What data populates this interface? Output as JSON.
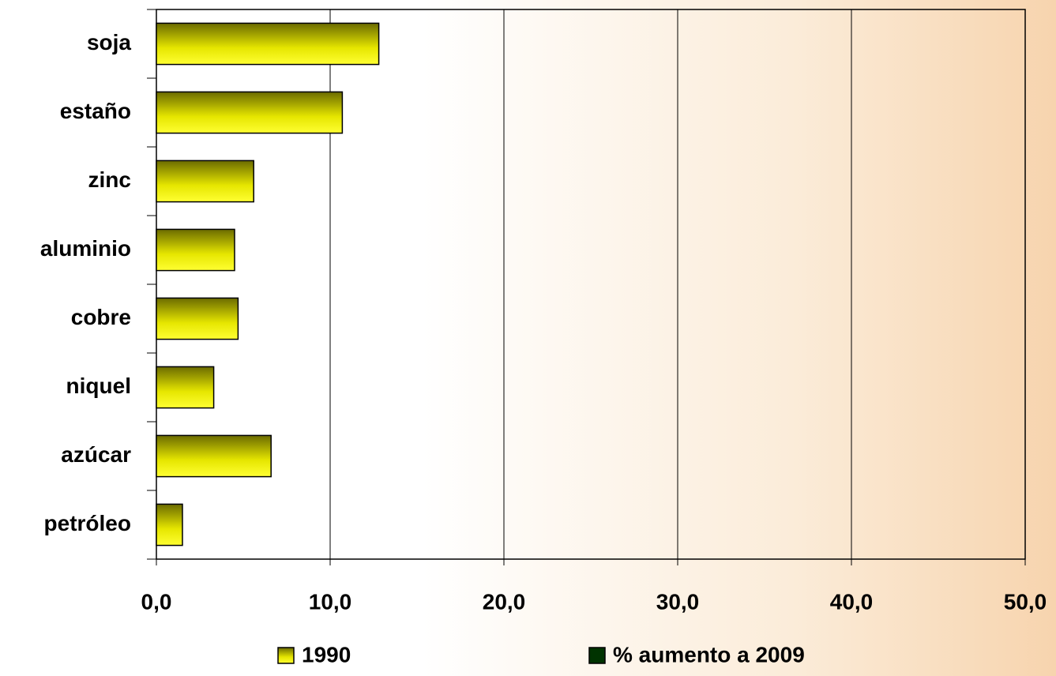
{
  "chart_data": {
    "type": "bar",
    "orientation": "horizontal",
    "categories": [
      "soja",
      "estaño",
      "zinc",
      "aluminio",
      "cobre",
      "niquel",
      "azúcar",
      "petróleo"
    ],
    "series": [
      {
        "name": "1990",
        "color": "#ffff00",
        "values": [
          12.8,
          10.7,
          5.6,
          4.5,
          4.7,
          3.3,
          6.6,
          1.5
        ]
      },
      {
        "name": "% aumento a 2009",
        "color": "#003300",
        "values": [
          null,
          null,
          null,
          null,
          null,
          null,
          null,
          null
        ]
      }
    ],
    "xlim": [
      0,
      50
    ],
    "xticks": [
      {
        "value": 0,
        "label": "0,0"
      },
      {
        "value": 10,
        "label": "10,0"
      },
      {
        "value": 20,
        "label": "20,0"
      },
      {
        "value": 30,
        "label": "30,0"
      },
      {
        "value": 40,
        "label": "40,0"
      },
      {
        "value": 50,
        "label": "50,0"
      }
    ],
    "grid": true,
    "legend": "bottom"
  }
}
